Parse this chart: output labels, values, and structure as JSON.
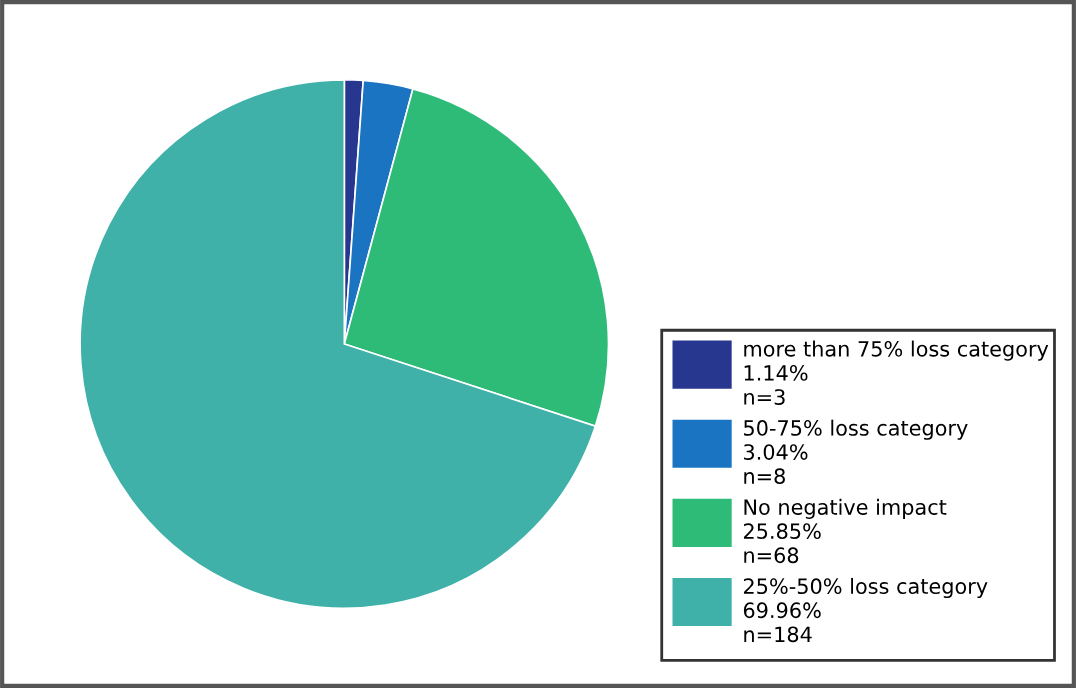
{
  "chart_data": {
    "type": "pie",
    "categories": [
      "more than 75% loss category",
      "50-75% loss category",
      "No negative impact",
      "25%-50% loss category"
    ],
    "values": [
      1.14,
      3.04,
      25.85,
      69.96
    ],
    "value_labels": [
      "1.14%",
      "3.04%",
      "25.85%",
      "69.96%"
    ],
    "annotations": [
      "n=3",
      "n=8",
      "n=68",
      "n=184"
    ],
    "colors": [
      "#27378f",
      "#1a74c2",
      "#2ebb78",
      "#3fb1a9"
    ],
    "legend": "bottom right"
  }
}
